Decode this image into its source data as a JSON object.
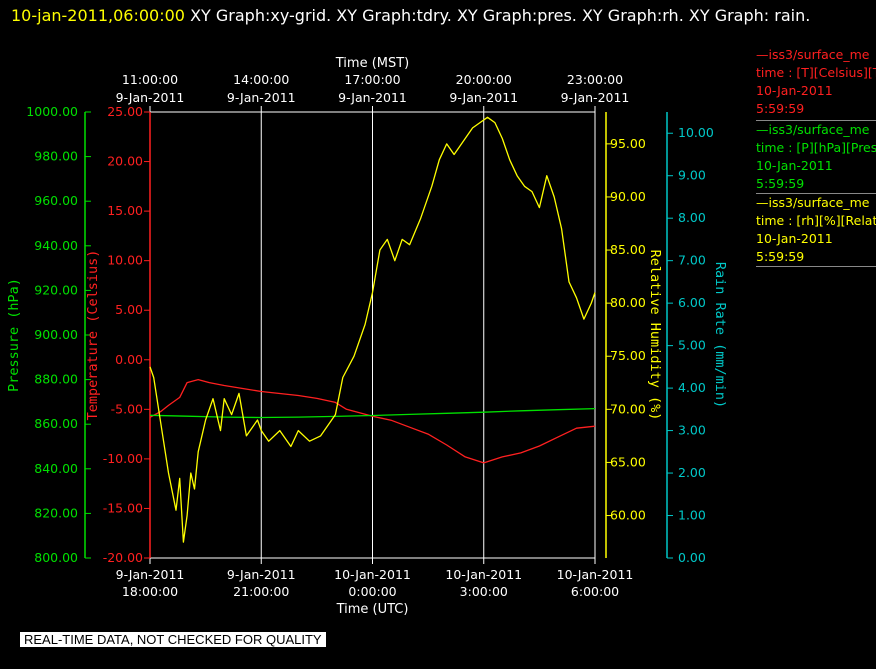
{
  "header": {
    "timestamp": "10-jan-2011,06:00:00",
    "titles": "XY Graph:xy-grid.  XY Graph:tdry.  XY Graph:pres.  XY Graph:rh.  XY Graph: rain."
  },
  "colors": {
    "temperature": "#ff2020",
    "pressure": "#00e000",
    "humidity": "#ffff00",
    "rain": "#00c8c8",
    "grid": "#ffffff"
  },
  "chart_data": {
    "type": "line",
    "top_axis": {
      "label": "Time (MST)",
      "ticks": [
        {
          "time": "11:00:00",
          "date": "9-Jan-2011",
          "hour": 0
        },
        {
          "time": "14:00:00",
          "date": "9-Jan-2011",
          "hour": 3
        },
        {
          "time": "17:00:00",
          "date": "9-Jan-2011",
          "hour": 6
        },
        {
          "time": "20:00:00",
          "date": "9-Jan-2011",
          "hour": 9
        },
        {
          "time": "23:00:00",
          "date": "9-Jan-2011",
          "hour": 12
        }
      ]
    },
    "bottom_axis": {
      "label": "Time (UTC)",
      "ticks": [
        {
          "date": "9-Jan-2011",
          "time": "18:00:00",
          "hour": 0
        },
        {
          "date": "9-Jan-2011",
          "time": "21:00:00",
          "hour": 3
        },
        {
          "date": "10-Jan-2011",
          "time": "0:00:00",
          "hour": 6
        },
        {
          "date": "10-Jan-2011",
          "time": "3:00:00",
          "hour": 9
        },
        {
          "date": "10-Jan-2011",
          "time": "6:00:00",
          "hour": 12
        }
      ]
    },
    "xlim_hours_utc": [
      0,
      12
    ],
    "grid": true,
    "axes": {
      "pressure": {
        "label": "Pressure (hPa)",
        "min": 800,
        "max": 1000,
        "ticks": [
          "800.00",
          "820.00",
          "840.00",
          "860.00",
          "880.00",
          "900.00",
          "920.00",
          "940.00",
          "960.00",
          "980.00",
          "1000.00"
        ]
      },
      "temperature": {
        "label": "Temperature (Celsius)",
        "min": -20,
        "max": 25,
        "ticks": [
          "-20.00",
          "-15.00",
          "-10.00",
          "-5.00",
          "0.00",
          "5.00",
          "10.00",
          "15.00",
          "20.00",
          "25.00"
        ]
      },
      "humidity": {
        "label": "Relative Humidity (%)",
        "min": 56,
        "max": 98,
        "ticks": [
          "60.00",
          "65.00",
          "70.00",
          "75.00",
          "80.00",
          "85.00",
          "90.00",
          "95.00"
        ]
      },
      "rain": {
        "label": "Rain Rate (mm/min)",
        "min": 0,
        "max": 10.5,
        "ticks": [
          "0.00",
          "1.00",
          "2.00",
          "3.00",
          "4.00",
          "5.00",
          "6.00",
          "7.00",
          "8.00",
          "9.00",
          "10.00"
        ]
      }
    },
    "series": [
      {
        "name": "iss3/surface_me",
        "axis": "temperature",
        "x": [
          0,
          0.3,
          0.5,
          0.8,
          1.0,
          1.3,
          1.6,
          2.0,
          2.5,
          3.0,
          3.5,
          4.0,
          4.5,
          5.0,
          5.3,
          5.6,
          6.0,
          6.5,
          7.0,
          7.5,
          8.0,
          8.5,
          9.0,
          9.5,
          10.0,
          10.5,
          11.0,
          11.5,
          12.0
        ],
        "y": [
          -5.8,
          -5.2,
          -4.6,
          -3.8,
          -2.3,
          -2.0,
          -2.3,
          -2.6,
          -2.9,
          -3.2,
          -3.4,
          -3.6,
          -3.9,
          -4.3,
          -5.0,
          -5.3,
          -5.7,
          -6.1,
          -6.8,
          -7.5,
          -8.6,
          -9.8,
          -10.4,
          -9.8,
          -9.4,
          -8.7,
          -7.8,
          -6.9,
          -6.7
        ]
      },
      {
        "name": "iss3/surface_me",
        "axis": "pressure",
        "x": [
          0,
          1,
          2,
          3,
          4,
          5,
          6,
          7,
          8,
          9,
          10,
          11,
          12
        ],
        "y": [
          864.0,
          863.6,
          863.2,
          863.0,
          863.2,
          863.5,
          863.9,
          864.4,
          864.9,
          865.4,
          866.0,
          866.5,
          867.0
        ]
      },
      {
        "name": "iss3/surface_me",
        "axis": "humidity",
        "x": [
          0,
          0.1,
          0.3,
          0.5,
          0.7,
          0.8,
          0.9,
          1.0,
          1.1,
          1.2,
          1.3,
          1.5,
          1.7,
          1.9,
          2.0,
          2.2,
          2.4,
          2.6,
          2.9,
          3.0,
          3.2,
          3.5,
          3.8,
          4.0,
          4.3,
          4.6,
          4.8,
          5.0,
          5.2,
          5.5,
          5.8,
          6.0,
          6.2,
          6.4,
          6.6,
          6.8,
          7.0,
          7.3,
          7.6,
          7.8,
          8.0,
          8.2,
          8.5,
          8.7,
          8.9,
          9.1,
          9.3,
          9.5,
          9.7,
          9.9,
          10.1,
          10.3,
          10.5,
          10.7,
          10.9,
          11.1,
          11.3,
          11.5,
          11.7,
          11.9,
          12.0
        ],
        "y": [
          74.0,
          73.0,
          68.5,
          64.0,
          60.5,
          63.5,
          57.5,
          60.0,
          64.0,
          62.5,
          66.0,
          69.0,
          71.0,
          68.0,
          71.0,
          69.5,
          71.5,
          67.5,
          69.0,
          68.0,
          67.0,
          68.0,
          66.5,
          68.0,
          67.0,
          67.5,
          68.5,
          69.5,
          73.0,
          75.0,
          78.0,
          81.0,
          85.0,
          86.0,
          84.0,
          86.0,
          85.5,
          88.0,
          91.0,
          93.5,
          95.0,
          94.0,
          95.5,
          96.5,
          97.0,
          97.5,
          97.0,
          95.5,
          93.5,
          92.0,
          91.0,
          90.5,
          89.0,
          92.0,
          90.0,
          87.0,
          82.0,
          80.5,
          78.5,
          80.0,
          81.0
        ]
      }
    ]
  },
  "legend": [
    {
      "name": "iss3/surface_me",
      "line2": "time : [T][Celsius][T",
      "date": "10-Jan-2011",
      "time": "5:59:59",
      "color": "#ff2020"
    },
    {
      "name": "iss3/surface_me",
      "line2": "time : [P][hPa][Pres",
      "date": "10-Jan-2011",
      "time": "5:59:59",
      "color": "#00e000"
    },
    {
      "name": "iss3/surface_me",
      "line2": "time : [rh][%][Relati",
      "date": "10-Jan-2011",
      "time": "5:59:59",
      "color": "#ffff00"
    }
  ],
  "footer": {
    "note": "REAL-TIME DATA, NOT CHECKED FOR QUALITY"
  }
}
